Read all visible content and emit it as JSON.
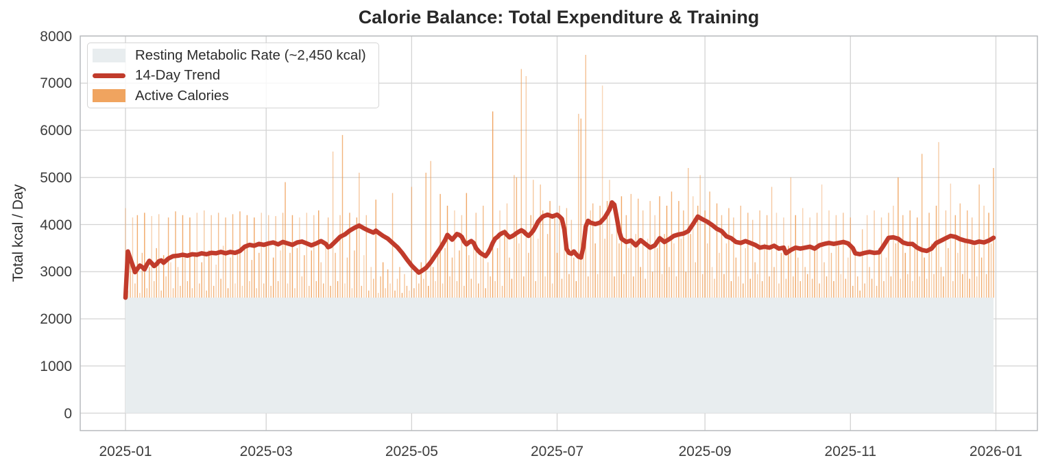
{
  "chart_data": {
    "type": "bar",
    "title": "Calorie Balance: Total Expenditure & Training",
    "ylabel": "Total kcal / Day",
    "xlabel": "",
    "grid": true,
    "legend_position": "upper left",
    "legend": {
      "rmr": "Resting Metabolic Rate (~2,450 kcal)",
      "trend": "14-Day Trend",
      "active": "Active Calories"
    },
    "rmr_kcal": 2450,
    "start_date": "2025-01-01",
    "days": 365,
    "ylim": [
      -370,
      8000
    ],
    "y_ticks": [
      0,
      1000,
      2000,
      3000,
      4000,
      5000,
      6000,
      7000,
      8000
    ],
    "x_ticks": [
      {
        "label": "2025-01",
        "day": 0
      },
      {
        "label": "2025-03",
        "day": 59
      },
      {
        "label": "2025-05",
        "day": 120
      },
      {
        "label": "2025-07",
        "day": 181
      },
      {
        "label": "2025-09",
        "day": 243
      },
      {
        "label": "2025-11",
        "day": 304
      },
      {
        "label": "2026-01",
        "day": 365
      }
    ],
    "colors": {
      "bar": "#ee9b51",
      "trend": "#c13b2b",
      "rmr_band": "#e8edef",
      "grid": "#d3d3d3",
      "spine": "#b7babd",
      "text": "#3c3c3c",
      "title_text": "#282828"
    },
    "daily_total_kcal": [
      4350,
      2600,
      3250,
      4150,
      2750,
      4200,
      2550,
      3400,
      4250,
      2650,
      3100,
      4180,
      2800,
      3500,
      4220,
      2600,
      3350,
      2900,
      4150,
      3200,
      2650,
      4280,
      3100,
      2700,
      4200,
      3300,
      2800,
      4150,
      2650,
      3400,
      4250,
      2750,
      3200,
      4300,
      2600,
      3450,
      4200,
      2700,
      3150,
      4250,
      2850,
      3550,
      4150,
      2650,
      3300,
      4220,
      2750,
      3400,
      4280,
      2700,
      3500,
      4200,
      2800,
      3250,
      4150,
      2650,
      3400,
      4250,
      2750,
      3550,
      4200,
      2700,
      3300,
      4180,
      2800,
      3450,
      4250,
      4900,
      2750,
      3400,
      4200,
      2650,
      3500,
      4150,
      2900,
      3350,
      4250,
      2700,
      3450,
      4200,
      2800,
      4300,
      3200,
      2750,
      3500,
      4150,
      2700,
      5550,
      3400,
      2800,
      4200,
      5900,
      2750,
      3300,
      4250,
      2650,
      3450,
      4150,
      5100,
      2700,
      3350,
      4200,
      2600,
      3100,
      2850,
      4530,
      2550,
      2900,
      3200,
      2650,
      3050,
      2750,
      4670,
      2600,
      2850,
      3100,
      2550,
      2950,
      2700,
      2600,
      4800,
      2650,
      3000,
      2750,
      3200,
      2850,
      5100,
      2700,
      5350,
      3100,
      2800,
      3400,
      4650,
      2750,
      3500,
      4400,
      2900,
      3300,
      4300,
      2800,
      3450,
      4200,
      2700,
      4670,
      3350,
      2850,
      3600,
      4250,
      2750,
      3400,
      4400,
      2650,
      3200,
      2900,
      6400,
      2800,
      3500,
      4300,
      2700,
      3900,
      4450,
      3300,
      2850,
      5050,
      5000,
      3600,
      7300,
      2900,
      7150,
      3400,
      4200,
      4950,
      2800,
      3700,
      4850,
      4300,
      2900,
      3800,
      4500,
      2750,
      4200,
      3400,
      4400,
      2850,
      3600,
      4350,
      2950,
      4100,
      3300,
      2800,
      6350,
      6250,
      3500,
      7600,
      2900,
      4300,
      4450,
      3600,
      2950,
      4400,
      6950,
      3700,
      4500,
      4950,
      3800,
      2900,
      4300,
      3600,
      4600,
      2950,
      4200,
      3500,
      4650,
      2900,
      3800,
      4550,
      3100,
      4300,
      2850,
      3700,
      4500,
      3000,
      4200,
      3500,
      4600,
      2950,
      3800,
      4400,
      3100,
      4700,
      3600,
      2900,
      4500,
      3700,
      4300,
      3000,
      5200,
      3800,
      4600,
      3200,
      4400,
      5050,
      2950,
      4300,
      3600,
      4700,
      3100,
      2850,
      4450,
      3400,
      4200,
      2950,
      3600,
      4350,
      2800,
      4150,
      3300,
      2900,
      4400,
      2750,
      3500,
      4250,
      2850,
      4100,
      3200,
      2950,
      4300,
      2800,
      3600,
      4200,
      2900,
      4800,
      3100,
      4250,
      2750,
      3400,
      4150,
      2850,
      3550,
      5000,
      2900,
      4200,
      3300,
      2800,
      4350,
      3100,
      2950,
      4150,
      2850,
      3500,
      4250,
      2750,
      4850,
      3200,
      2900,
      4300,
      3400,
      2800,
      4200,
      3550,
      2950,
      4250,
      2850,
      3300,
      4150,
      2700,
      3450,
      2900,
      2600,
      3900,
      2750,
      4200,
      3100,
      2850,
      4300,
      2700,
      3500,
      4150,
      2800,
      3300,
      4250,
      2900,
      4400,
      3600,
      5000,
      2850,
      4200,
      3400,
      2950,
      4300,
      2800,
      3500,
      4150,
      2900,
      5500,
      3300,
      2850,
      4250,
      3600,
      2950,
      4400,
      5750,
      3100,
      2900,
      4300,
      3500,
      4870,
      2800,
      4200,
      3400,
      4450,
      2950,
      3700,
      4300,
      2850,
      4150,
      3550,
      2900,
      4850,
      3300,
      4400,
      2950,
      4250,
      3600,
      5200
    ],
    "trend_points": [
      [
        0,
        2450
      ],
      [
        1,
        3430
      ],
      [
        2,
        3280
      ],
      [
        3,
        3140
      ],
      [
        4,
        2990
      ],
      [
        5,
        3060
      ],
      [
        6,
        3130
      ],
      [
        7,
        3100
      ],
      [
        8,
        3050
      ],
      [
        9,
        3150
      ],
      [
        10,
        3230
      ],
      [
        11,
        3180
      ],
      [
        12,
        3120
      ],
      [
        13,
        3160
      ],
      [
        14,
        3220
      ],
      [
        15,
        3240
      ],
      [
        16,
        3190
      ],
      [
        18,
        3280
      ],
      [
        20,
        3330
      ],
      [
        22,
        3340
      ],
      [
        24,
        3360
      ],
      [
        26,
        3340
      ],
      [
        28,
        3370
      ],
      [
        30,
        3360
      ],
      [
        32,
        3390
      ],
      [
        34,
        3370
      ],
      [
        36,
        3400
      ],
      [
        38,
        3390
      ],
      [
        40,
        3420
      ],
      [
        42,
        3390
      ],
      [
        44,
        3420
      ],
      [
        46,
        3400
      ],
      [
        48,
        3440
      ],
      [
        50,
        3530
      ],
      [
        52,
        3570
      ],
      [
        54,
        3550
      ],
      [
        56,
        3590
      ],
      [
        58,
        3570
      ],
      [
        60,
        3600
      ],
      [
        62,
        3620
      ],
      [
        64,
        3580
      ],
      [
        66,
        3630
      ],
      [
        68,
        3600
      ],
      [
        70,
        3570
      ],
      [
        72,
        3620
      ],
      [
        74,
        3640
      ],
      [
        76,
        3600
      ],
      [
        78,
        3560
      ],
      [
        80,
        3600
      ],
      [
        82,
        3650
      ],
      [
        84,
        3590
      ],
      [
        85,
        3520
      ],
      [
        86,
        3540
      ],
      [
        88,
        3640
      ],
      [
        90,
        3740
      ],
      [
        92,
        3790
      ],
      [
        94,
        3870
      ],
      [
        96,
        3930
      ],
      [
        98,
        3980
      ],
      [
        100,
        3920
      ],
      [
        102,
        3870
      ],
      [
        104,
        3830
      ],
      [
        105,
        3870
      ],
      [
        106,
        3830
      ],
      [
        108,
        3760
      ],
      [
        110,
        3700
      ],
      [
        112,
        3610
      ],
      [
        114,
        3520
      ],
      [
        116,
        3400
      ],
      [
        118,
        3260
      ],
      [
        120,
        3130
      ],
      [
        122,
        3030
      ],
      [
        123,
        2980
      ],
      [
        124,
        3010
      ],
      [
        126,
        3080
      ],
      [
        128,
        3200
      ],
      [
        130,
        3350
      ],
      [
        132,
        3500
      ],
      [
        134,
        3670
      ],
      [
        135,
        3780
      ],
      [
        136,
        3730
      ],
      [
        137,
        3680
      ],
      [
        138,
        3740
      ],
      [
        139,
        3800
      ],
      [
        140,
        3780
      ],
      [
        141,
        3740
      ],
      [
        142,
        3640
      ],
      [
        143,
        3580
      ],
      [
        144,
        3620
      ],
      [
        145,
        3650
      ],
      [
        146,
        3610
      ],
      [
        147,
        3500
      ],
      [
        148,
        3440
      ],
      [
        149,
        3390
      ],
      [
        150,
        3360
      ],
      [
        151,
        3330
      ],
      [
        152,
        3400
      ],
      [
        153,
        3490
      ],
      [
        154,
        3610
      ],
      [
        155,
        3700
      ],
      [
        156,
        3740
      ],
      [
        157,
        3790
      ],
      [
        158,
        3820
      ],
      [
        159,
        3840
      ],
      [
        160,
        3780
      ],
      [
        161,
        3730
      ],
      [
        162,
        3750
      ],
      [
        163,
        3780
      ],
      [
        164,
        3820
      ],
      [
        165,
        3850
      ],
      [
        166,
        3880
      ],
      [
        167,
        3850
      ],
      [
        168,
        3800
      ],
      [
        169,
        3760
      ],
      [
        170,
        3810
      ],
      [
        171,
        3870
      ],
      [
        172,
        3960
      ],
      [
        173,
        4060
      ],
      [
        174,
        4120
      ],
      [
        175,
        4170
      ],
      [
        176,
        4190
      ],
      [
        177,
        4210
      ],
      [
        178,
        4190
      ],
      [
        179,
        4170
      ],
      [
        180,
        4190
      ],
      [
        181,
        4210
      ],
      [
        182,
        4170
      ],
      [
        183,
        4120
      ],
      [
        184,
        3900
      ],
      [
        185,
        3480
      ],
      [
        186,
        3400
      ],
      [
        187,
        3380
      ],
      [
        188,
        3430
      ],
      [
        189,
        3370
      ],
      [
        190,
        3320
      ],
      [
        191,
        3300
      ],
      [
        192,
        3520
      ],
      [
        193,
        3960
      ],
      [
        194,
        4080
      ],
      [
        195,
        4040
      ],
      [
        197,
        4010
      ],
      [
        199,
        4040
      ],
      [
        201,
        4150
      ],
      [
        203,
        4320
      ],
      [
        204,
        4470
      ],
      [
        205,
        4420
      ],
      [
        206,
        4150
      ],
      [
        207,
        3860
      ],
      [
        208,
        3700
      ],
      [
        210,
        3630
      ],
      [
        212,
        3660
      ],
      [
        214,
        3560
      ],
      [
        216,
        3670
      ],
      [
        218,
        3590
      ],
      [
        220,
        3510
      ],
      [
        222,
        3560
      ],
      [
        224,
        3710
      ],
      [
        226,
        3630
      ],
      [
        228,
        3690
      ],
      [
        230,
        3760
      ],
      [
        232,
        3790
      ],
      [
        234,
        3810
      ],
      [
        236,
        3860
      ],
      [
        238,
        4010
      ],
      [
        240,
        4170
      ],
      [
        242,
        4110
      ],
      [
        244,
        4060
      ],
      [
        246,
        3990
      ],
      [
        248,
        3910
      ],
      [
        250,
        3860
      ],
      [
        252,
        3750
      ],
      [
        254,
        3710
      ],
      [
        256,
        3630
      ],
      [
        258,
        3610
      ],
      [
        260,
        3650
      ],
      [
        262,
        3610
      ],
      [
        264,
        3570
      ],
      [
        266,
        3510
      ],
      [
        268,
        3530
      ],
      [
        270,
        3510
      ],
      [
        272,
        3550
      ],
      [
        274,
        3490
      ],
      [
        276,
        3510
      ],
      [
        277,
        3390
      ],
      [
        279,
        3460
      ],
      [
        281,
        3510
      ],
      [
        283,
        3490
      ],
      [
        285,
        3510
      ],
      [
        287,
        3530
      ],
      [
        289,
        3490
      ],
      [
        291,
        3560
      ],
      [
        293,
        3590
      ],
      [
        295,
        3610
      ],
      [
        297,
        3590
      ],
      [
        299,
        3610
      ],
      [
        301,
        3630
      ],
      [
        303,
        3600
      ],
      [
        305,
        3500
      ],
      [
        306,
        3390
      ],
      [
        308,
        3370
      ],
      [
        310,
        3400
      ],
      [
        312,
        3420
      ],
      [
        314,
        3400
      ],
      [
        316,
        3410
      ],
      [
        318,
        3560
      ],
      [
        320,
        3720
      ],
      [
        322,
        3730
      ],
      [
        324,
        3700
      ],
      [
        326,
        3620
      ],
      [
        328,
        3590
      ],
      [
        330,
        3590
      ],
      [
        332,
        3510
      ],
      [
        334,
        3460
      ],
      [
        336,
        3440
      ],
      [
        338,
        3490
      ],
      [
        340,
        3610
      ],
      [
        342,
        3660
      ],
      [
        344,
        3710
      ],
      [
        346,
        3760
      ],
      [
        348,
        3740
      ],
      [
        350,
        3690
      ],
      [
        352,
        3660
      ],
      [
        354,
        3640
      ],
      [
        356,
        3610
      ],
      [
        358,
        3640
      ],
      [
        360,
        3620
      ],
      [
        362,
        3660
      ],
      [
        364,
        3720
      ]
    ]
  }
}
